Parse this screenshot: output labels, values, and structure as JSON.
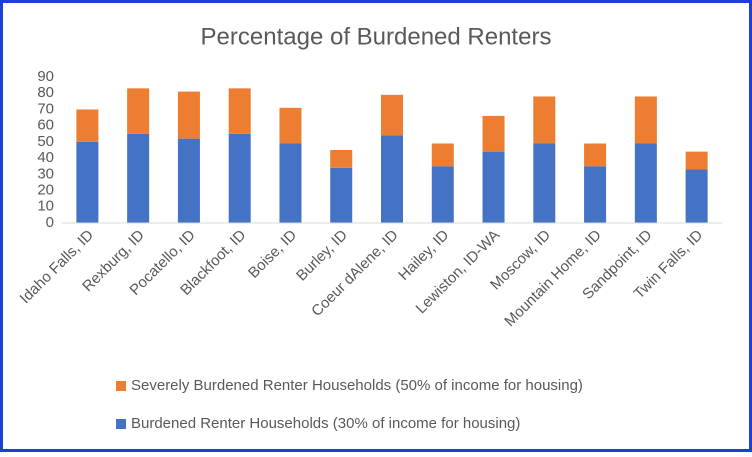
{
  "chart_data": {
    "type": "stacked-bar",
    "title": "Percentage of Burdened Renters",
    "categories": [
      "Idaho Falls, ID",
      "Rexburg, ID",
      "Pocatello, ID",
      "Blackfoot, ID",
      "Boise, ID",
      "Burley, ID",
      "Coeur dAlene, ID",
      "Hailey, ID",
      "Lewiston, ID-WA",
      "Moscow, ID",
      "Mountain Home, ID",
      "Sandpoint, ID",
      "Twin Falls, ID"
    ],
    "series": [
      {
        "name": "Burdened Renter Households (30% of income for housing)",
        "color": "#4472c4",
        "values": [
          50,
          55,
          52,
          55,
          49,
          34,
          54,
          35,
          44,
          49,
          35,
          49,
          33
        ]
      },
      {
        "name": "Severely Burdened Renter Households (50% of income for housing)",
        "color": "#ed7d31",
        "values": [
          20,
          28,
          29,
          28,
          22,
          11,
          25,
          14,
          22,
          29,
          14,
          29,
          11
        ]
      }
    ],
    "ylim": [
      0,
      90
    ],
    "yticks": [
      0,
      10,
      20,
      30,
      40,
      50,
      60,
      70,
      80,
      90
    ],
    "grid": false,
    "legend": "bottom"
  }
}
